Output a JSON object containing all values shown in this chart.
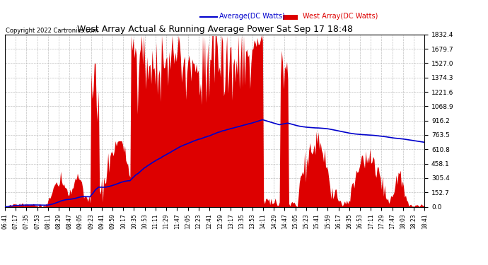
{
  "title": "West Array Actual & Running Average Power Sat Sep 17 18:48",
  "copyright": "Copyright 2022 Cartronics.com",
  "legend_avg": "Average(DC Watts)",
  "legend_west": "West Array(DC Watts)",
  "ymax": 1832.4,
  "ymin": 0.0,
  "yticks": [
    0.0,
    152.7,
    305.4,
    458.1,
    610.8,
    763.5,
    916.2,
    1068.9,
    1221.6,
    1374.3,
    1527.0,
    1679.7,
    1832.4
  ],
  "background_color": "#ffffff",
  "plot_bg_color": "#ffffff",
  "grid_color": "#b0b0b0",
  "bar_color": "#dd0000",
  "avg_color": "#0000cc",
  "title_color": "#000000",
  "copyright_color": "#000000",
  "xtick_labels": [
    "06:41",
    "07:17",
    "07:35",
    "07:53",
    "08:11",
    "08:29",
    "08:47",
    "09:05",
    "09:23",
    "09:41",
    "09:59",
    "10:17",
    "10:35",
    "10:53",
    "11:11",
    "11:29",
    "11:47",
    "12:05",
    "12:23",
    "12:41",
    "12:59",
    "13:17",
    "13:35",
    "13:53",
    "14:11",
    "14:29",
    "14:47",
    "15:05",
    "15:23",
    "15:41",
    "15:59",
    "16:17",
    "16:35",
    "16:53",
    "17:11",
    "17:29",
    "17:47",
    "18:03",
    "18:23",
    "18:41"
  ]
}
